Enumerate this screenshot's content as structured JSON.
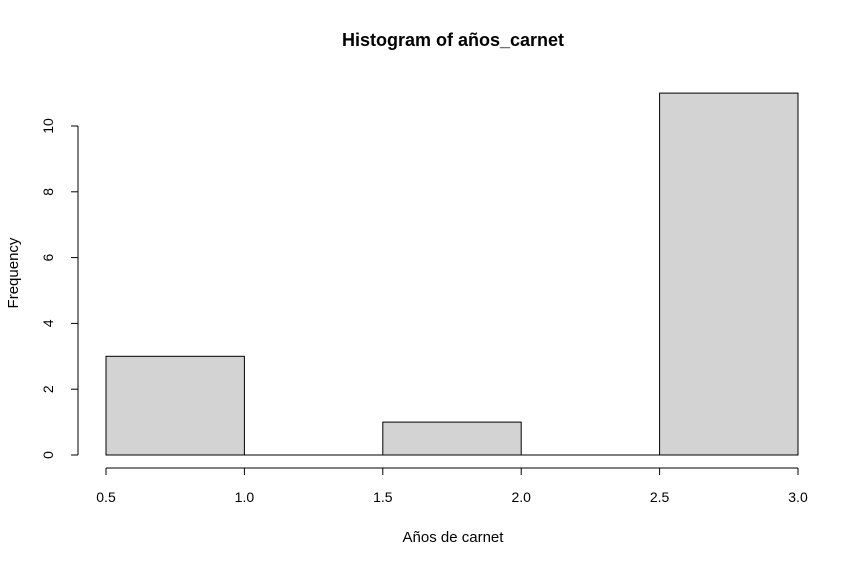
{
  "chart_data": {
    "type": "bar",
    "title": "Histogram of años_carnet",
    "xlabel": "Años de carnet",
    "ylabel": "Frequency",
    "bins": [
      {
        "start": 0.5,
        "end": 1.0,
        "count": 3
      },
      {
        "start": 1.0,
        "end": 1.5,
        "count": 0
      },
      {
        "start": 1.5,
        "end": 2.0,
        "count": 1
      },
      {
        "start": 2.0,
        "end": 2.5,
        "count": 0
      },
      {
        "start": 2.5,
        "end": 3.0,
        "count": 11
      }
    ],
    "xlim": [
      0.5,
      3.0
    ],
    "ylim": [
      0,
      11
    ],
    "xticks": [
      "0.5",
      "1.0",
      "1.5",
      "2.0",
      "2.5",
      "3.0"
    ],
    "yticks": [
      "0",
      "2",
      "4",
      "6",
      "8",
      "10"
    ],
    "bar_color": "#d3d3d3",
    "grid": false,
    "legend": "none"
  }
}
